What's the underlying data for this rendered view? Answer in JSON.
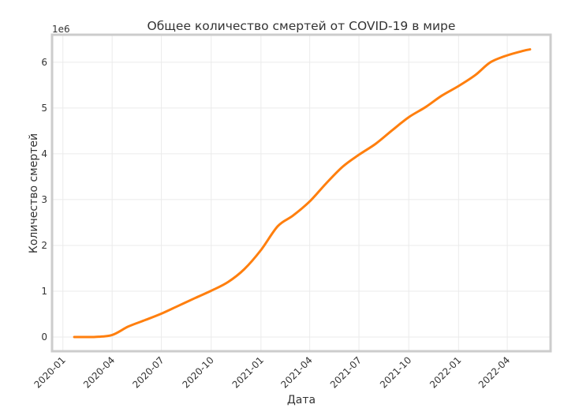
{
  "chart_data": {
    "type": "line",
    "title": "Общее количество смертей от COVID-19 в мире",
    "xlabel": "Дата",
    "ylabel": "Количество смертей",
    "y_offset_label": "1e6",
    "y_scale": 1000000,
    "xlim": [
      "2019-12-12",
      "2022-06-20"
    ],
    "ylim": [
      -310000,
      6600000
    ],
    "grid": true,
    "x_ticks": [
      "2020-01",
      "2020-04",
      "2020-07",
      "2020-10",
      "2021-01",
      "2021-04",
      "2021-07",
      "2021-10",
      "2022-01",
      "2022-04"
    ],
    "y_ticks": [
      0,
      1,
      2,
      3,
      4,
      5,
      6
    ],
    "series": [
      {
        "color": "#ff7f0e",
        "x": [
          "2020-01-22",
          "2020-02-01",
          "2020-03-01",
          "2020-04-01",
          "2020-05-01",
          "2020-06-01",
          "2020-07-01",
          "2020-08-01",
          "2020-09-01",
          "2020-10-01",
          "2020-11-01",
          "2020-12-01",
          "2021-01-01",
          "2021-02-01",
          "2021-03-01",
          "2021-04-01",
          "2021-05-01",
          "2021-06-01",
          "2021-07-01",
          "2021-08-01",
          "2021-09-01",
          "2021-10-01",
          "2021-11-01",
          "2021-12-01",
          "2022-01-01",
          "2022-02-01",
          "2022-03-01",
          "2022-04-01",
          "2022-05-01",
          "2022-05-13"
        ],
        "y": [
          0,
          300,
          3000,
          45000,
          230000,
          370000,
          510000,
          680000,
          850000,
          1010000,
          1200000,
          1480000,
          1900000,
          2420000,
          2650000,
          2960000,
          3350000,
          3720000,
          3980000,
          4220000,
          4520000,
          4800000,
          5020000,
          5270000,
          5480000,
          5720000,
          6000000,
          6150000,
          6250000,
          6280000
        ]
      }
    ]
  }
}
